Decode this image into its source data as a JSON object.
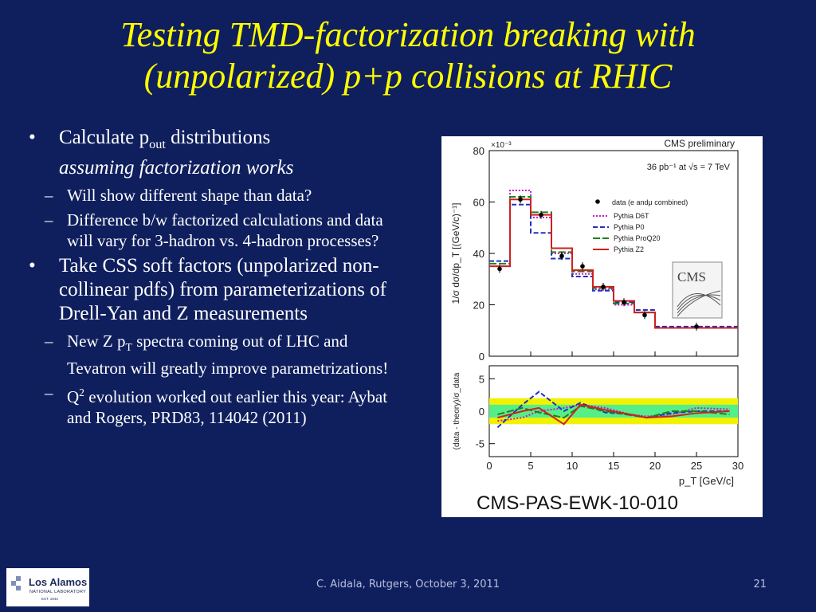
{
  "slide": {
    "title_line1": "Testing TMD-factorization breaking with",
    "title_line2": "(unpolarized) p+p collisions at RHIC",
    "bullet1": {
      "pre": "Calculate p",
      "sub": "out",
      "post": " distributions",
      "italic": "assuming factorization works"
    },
    "bullet1_subs": [
      "Will show different shape than data?",
      "Difference b/w factorized calculations and data will vary for 3-hadron vs. 4-hadron processes?"
    ],
    "bullet2": "Take CSS soft factors (unpolarized non-collinear pdfs) from parameterizations of Drell-Yan and Z measurements",
    "bullet2_sub1": {
      "pre": "New Z p",
      "sub": "T",
      "post": " spectra coming out of LHC and Tevatron will greatly improve parametrizations!"
    },
    "bullet2_sub2": {
      "pre": "Q",
      "sup": "2",
      "post": " evolution worked out earlier this year: Aybat and Rogers, PRD83, 114042 (2011)"
    },
    "bullet_marker": "•",
    "dash_marker": "–",
    "footer": "C. Aidala, Rutgers, October 3, 2011",
    "page_number": "21",
    "logo_text": "Los Alamos",
    "logo_sub": "NATIONAL LABORATORY",
    "logo_est": "EST. 1943"
  },
  "chart_data": {
    "type": "bar",
    "label_top": "CMS preliminary",
    "label_lumi": "36 pb⁻¹ at √s = 7 TeV",
    "scale_label": "×10⁻³",
    "ylabel": "1/σ dσ/dp_T [(GeV/c)⁻¹]",
    "xlabel": "p_T [GeV/c]",
    "ratio_ylabel": "(data - theory)/σ_data",
    "caption": "CMS-PAS-EWK-10-010",
    "cms_logo": "CMS",
    "x_edges": [
      2.5,
      5,
      7.5,
      10,
      12.5,
      15,
      17.5,
      20,
      30
    ],
    "xlim": [
      0,
      30
    ],
    "ylim": [
      0,
      80
    ],
    "xticks": [
      0,
      5,
      10,
      15,
      20,
      25,
      30
    ],
    "yticks": [
      0,
      20,
      40,
      60,
      80
    ],
    "ratio_ylim": [
      -7,
      7
    ],
    "ratio_yticks": [
      -5,
      0,
      5
    ],
    "legend_position": "top-right",
    "data": {
      "name": "data (e andμ combined)",
      "x": [
        1.25,
        3.75,
        6.25,
        8.75,
        11.25,
        13.75,
        16.25,
        18.75,
        25
      ],
      "y": [
        34,
        61,
        55,
        39,
        35,
        27,
        21,
        16,
        11.5
      ]
    },
    "series": [
      {
        "name": "Pythia D6T",
        "color": "#c020c0",
        "dash": "2,2",
        "values": [
          35,
          64.5,
          54,
          40,
          32,
          26,
          20,
          17,
          11
        ]
      },
      {
        "name": "Pythia P0",
        "color": "#2030c0",
        "dash": "6,3",
        "values": [
          37,
          59,
          48,
          38,
          31,
          25.5,
          21,
          18,
          11.5
        ]
      },
      {
        "name": "Pythia ProQ20",
        "color": "#208020",
        "dash": "9,3",
        "values": [
          36,
          62,
          56,
          40.5,
          33,
          26.5,
          20.5,
          17,
          11
        ]
      },
      {
        "name": "Pythia Z2",
        "color": "#d02020",
        "dash": "",
        "values": [
          35,
          61,
          55,
          42,
          33.5,
          27,
          21.5,
          17,
          11
        ]
      }
    ],
    "ratio_bands": {
      "inner": 1,
      "outer": 2
    },
    "ratio_series": [
      {
        "color": "#c020c0",
        "dash": "2,2",
        "x": [
          1,
          4,
          6,
          9,
          11,
          14,
          17,
          19,
          22,
          25,
          29
        ],
        "y": [
          -1.5,
          -1,
          0,
          0.5,
          1,
          0.5,
          -0.5,
          -0.8,
          -0.5,
          0.5,
          0.3
        ]
      },
      {
        "color": "#2030c0",
        "dash": "6,3",
        "x": [
          1,
          4,
          6,
          9,
          11,
          14,
          17,
          19,
          22,
          25,
          29
        ],
        "y": [
          -2.5,
          1,
          3,
          0,
          1.3,
          -0.2,
          -0.5,
          -1,
          -0.3,
          0,
          0
        ]
      },
      {
        "color": "#208020",
        "dash": "9,3",
        "x": [
          1,
          4,
          6,
          9,
          11,
          14,
          17,
          19,
          22,
          25,
          29
        ],
        "y": [
          -0.5,
          0.5,
          -0.2,
          -1,
          0.8,
          0,
          -0.6,
          -1,
          0,
          0,
          -0.5
        ]
      },
      {
        "color": "#d02020",
        "dash": "",
        "x": [
          1,
          4,
          6,
          9,
          11,
          14,
          17,
          19,
          22,
          25,
          29
        ],
        "y": [
          -1,
          0,
          0.5,
          -2,
          1,
          0.2,
          -0.5,
          -1,
          -0.8,
          -0.3,
          0
        ]
      }
    ]
  }
}
